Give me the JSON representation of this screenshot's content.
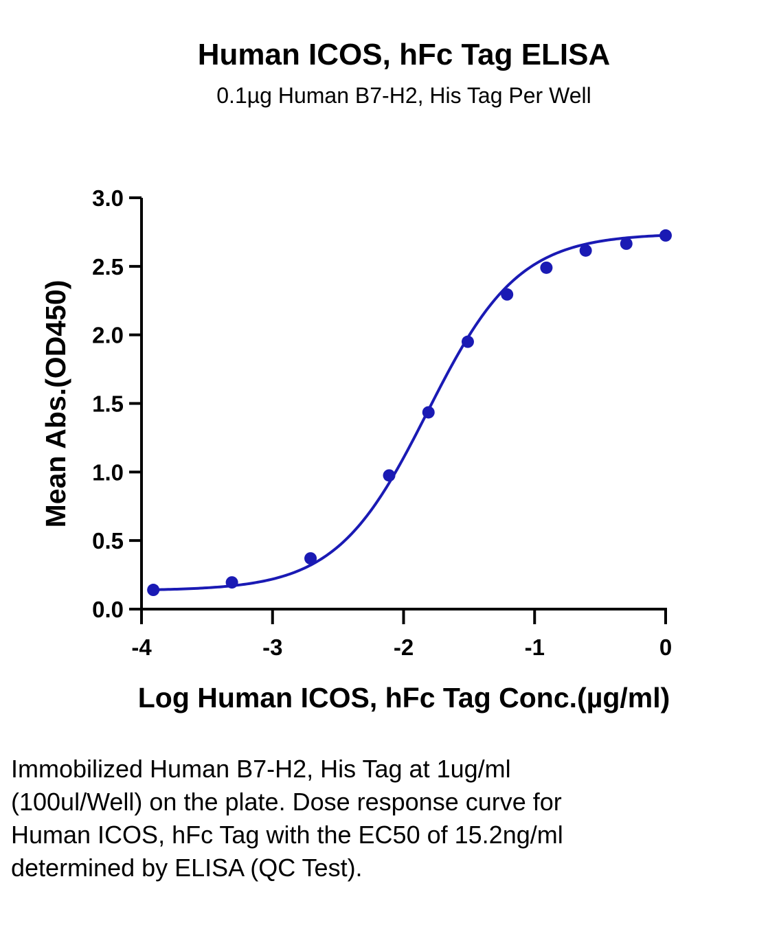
{
  "chart_data": {
    "type": "scatter",
    "title": "Human ICOS, hFc Tag ELISA",
    "subtitle": "0.1µg Human B7-H2, His Tag Per Well",
    "xlabel": "Log Human ICOS, hFc Tag Conc.(µg/ml)",
    "ylabel": "Mean Abs.(OD450)",
    "xlim": [
      -4,
      0
    ],
    "ylim": [
      0,
      3
    ],
    "xticks": [
      -4,
      -3,
      -2,
      -1,
      0
    ],
    "xtick_labels": [
      "-4",
      "-3",
      "-2",
      "-1",
      "0"
    ],
    "yticks": [
      0,
      0.5,
      1,
      1.5,
      2,
      2.5,
      3
    ],
    "ytick_labels": [
      "0.0",
      "0.5",
      "1.0",
      "1.5",
      "2.0",
      "2.5",
      "3.0"
    ],
    "grid": false,
    "series": [
      {
        "x": [
          -3.91,
          -3.31,
          -2.71,
          -2.11,
          -1.81,
          -1.51,
          -1.21,
          -0.91,
          -0.61,
          -0.3,
          0.0
        ],
        "y": [
          0.14,
          0.195,
          0.37,
          0.975,
          1.435,
          1.95,
          2.295,
          2.49,
          2.615,
          2.665,
          2.725
        ],
        "color": "#1a1ab4",
        "fit": {
          "model": "4PL",
          "bottom": 0.135,
          "top": 2.74,
          "log_ec50": -1.818,
          "hill": 1.25
        }
      }
    ]
  },
  "caption": "Immobilized Human B7-H2, His Tag at 1ug/ml (100ul/Well) on the plate. Dose response curve for Human ICOS, hFc Tag with the EC50 of 15.2ng/ml determined by ELISA (QC Test)."
}
